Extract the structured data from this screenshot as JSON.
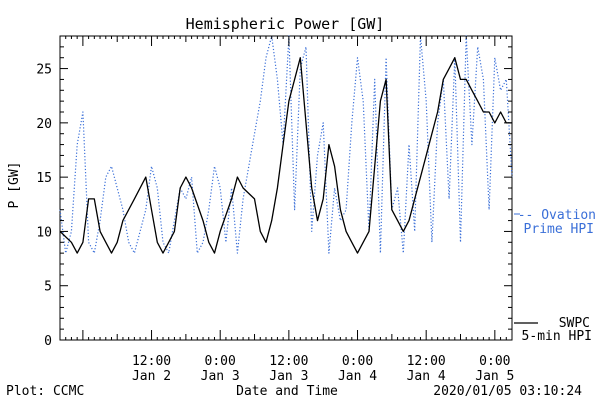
{
  "chart_data": {
    "type": "line",
    "title": "Hemispheric Power [GW]",
    "ylabel": "P [GW]",
    "xlabel": "Date and Time",
    "ylim": [
      0,
      28
    ],
    "yticks": [
      0,
      5,
      10,
      15,
      20,
      25
    ],
    "xlim": [
      "2020-01-01T20:00",
      "2020-01-05T03:00"
    ],
    "xticks": [
      {
        "at": "2020-01-02T12:00",
        "time": "12:00",
        "day": "Jan 2"
      },
      {
        "at": "2020-01-03T00:00",
        "time": "0:00",
        "day": "Jan 3"
      },
      {
        "at": "2020-01-03T12:00",
        "time": "12:00",
        "day": "Jan 3"
      },
      {
        "at": "2020-01-04T00:00",
        "time": "0:00",
        "day": "Jan 4"
      },
      {
        "at": "2020-01-04T12:00",
        "time": "12:00",
        "day": "Jan 4"
      },
      {
        "at": "2020-01-05T00:00",
        "time": "0:00",
        "day": "Jan 5"
      }
    ],
    "grid": false,
    "legend_placement": "right",
    "series": [
      {
        "name": "Ovation Prime HPI",
        "legend_lines": [
          "-- Ovation",
          "Prime HPI"
        ],
        "color": "#3a6fd8",
        "style": "dotted",
        "x": [
          "2020-01-01T20:00",
          "2020-01-01T21:00",
          "2020-01-01T22:00",
          "2020-01-01T23:00",
          "2020-01-02T00:00",
          "2020-01-02T01:00",
          "2020-01-02T02:00",
          "2020-01-02T03:00",
          "2020-01-02T04:00",
          "2020-01-02T05:00",
          "2020-01-02T06:00",
          "2020-01-02T07:00",
          "2020-01-02T08:00",
          "2020-01-02T09:00",
          "2020-01-02T10:00",
          "2020-01-02T11:00",
          "2020-01-02T12:00",
          "2020-01-02T13:00",
          "2020-01-02T14:00",
          "2020-01-02T15:00",
          "2020-01-02T16:00",
          "2020-01-02T17:00",
          "2020-01-02T18:00",
          "2020-01-02T19:00",
          "2020-01-02T20:00",
          "2020-01-02T21:00",
          "2020-01-02T22:00",
          "2020-01-02T23:00",
          "2020-01-03T00:00",
          "2020-01-03T01:00",
          "2020-01-03T02:00",
          "2020-01-03T03:00",
          "2020-01-03T04:00",
          "2020-01-03T05:00",
          "2020-01-03T06:00",
          "2020-01-03T07:00",
          "2020-01-03T08:00",
          "2020-01-03T09:00",
          "2020-01-03T10:00",
          "2020-01-03T11:00",
          "2020-01-03T12:00",
          "2020-01-03T13:00",
          "2020-01-03T14:00",
          "2020-01-03T15:00",
          "2020-01-03T16:00",
          "2020-01-03T17:00",
          "2020-01-03T18:00",
          "2020-01-03T19:00",
          "2020-01-03T20:00",
          "2020-01-03T21:00",
          "2020-01-03T22:00",
          "2020-01-03T23:00",
          "2020-01-04T00:00",
          "2020-01-04T01:00",
          "2020-01-04T02:00",
          "2020-01-04T03:00",
          "2020-01-04T04:00",
          "2020-01-04T05:00",
          "2020-01-04T06:00",
          "2020-01-04T07:00",
          "2020-01-04T08:00",
          "2020-01-04T09:00",
          "2020-01-04T10:00",
          "2020-01-04T11:00",
          "2020-01-04T12:00",
          "2020-01-04T13:00",
          "2020-01-04T14:00",
          "2020-01-04T15:00",
          "2020-01-04T16:00",
          "2020-01-04T17:00",
          "2020-01-04T18:00",
          "2020-01-04T19:00",
          "2020-01-04T20:00",
          "2020-01-04T21:00",
          "2020-01-04T22:00",
          "2020-01-04T23:00",
          "2020-01-05T00:00",
          "2020-01-05T01:00",
          "2020-01-05T02:00",
          "2020-01-05T03:00"
        ],
        "values": [
          12,
          8,
          10,
          18,
          21,
          9,
          8,
          11,
          15,
          16,
          14,
          12,
          9,
          8,
          10,
          12,
          16,
          14,
          9,
          8,
          11,
          14,
          13,
          15,
          8,
          9,
          12,
          16,
          14,
          9,
          14,
          8,
          13,
          16,
          19,
          22,
          26,
          28,
          24,
          18,
          28,
          12,
          25,
          27,
          10,
          17,
          20,
          8,
          14,
          11,
          12,
          20,
          26,
          22,
          10,
          24,
          8,
          26,
          12,
          14,
          8,
          18,
          10,
          28,
          22,
          9,
          20,
          24,
          13,
          26,
          9,
          28,
          18,
          27,
          24,
          12,
          26,
          23,
          24,
          15
        ]
      },
      {
        "name": "SWPC 5-min HPI",
        "legend_lines": [
          "SWPC",
          "5-min HPI"
        ],
        "color": "#000000",
        "style": "solid",
        "x": [
          "2020-01-01T20:00",
          "2020-01-01T22:00",
          "2020-01-01T23:00",
          "2020-01-02T00:00",
          "2020-01-02T01:00",
          "2020-01-02T02:00",
          "2020-01-02T03:00",
          "2020-01-02T04:00",
          "2020-01-02T05:00",
          "2020-01-02T06:00",
          "2020-01-02T07:00",
          "2020-01-02T09:00",
          "2020-01-02T11:00",
          "2020-01-02T12:00",
          "2020-01-02T13:00",
          "2020-01-02T14:00",
          "2020-01-02T15:00",
          "2020-01-02T16:00",
          "2020-01-02T17:00",
          "2020-01-02T18:00",
          "2020-01-02T19:00",
          "2020-01-02T21:00",
          "2020-01-02T22:00",
          "2020-01-02T23:00",
          "2020-01-03T00:00",
          "2020-01-03T02:00",
          "2020-01-03T03:00",
          "2020-01-03T04:00",
          "2020-01-03T06:00",
          "2020-01-03T07:00",
          "2020-01-03T08:00",
          "2020-01-03T09:00",
          "2020-01-03T10:00",
          "2020-01-03T11:00",
          "2020-01-03T12:00",
          "2020-01-03T13:00",
          "2020-01-03T14:00",
          "2020-01-03T15:00",
          "2020-01-03T16:00",
          "2020-01-03T17:00",
          "2020-01-03T18:00",
          "2020-01-03T19:00",
          "2020-01-03T20:00",
          "2020-01-03T21:00",
          "2020-01-03T22:00",
          "2020-01-03T23:00",
          "2020-01-04T00:00",
          "2020-01-04T01:00",
          "2020-01-04T02:00",
          "2020-01-04T03:00",
          "2020-01-04T04:00",
          "2020-01-04T05:00",
          "2020-01-04T06:00",
          "2020-01-04T07:00",
          "2020-01-04T08:00",
          "2020-01-04T09:00",
          "2020-01-04T10:00",
          "2020-01-04T11:00",
          "2020-01-04T12:00",
          "2020-01-04T13:00",
          "2020-01-04T14:00",
          "2020-01-04T15:00",
          "2020-01-04T16:00",
          "2020-01-04T17:00",
          "2020-01-04T18:00",
          "2020-01-04T19:00",
          "2020-01-04T20:00",
          "2020-01-04T21:00",
          "2020-01-04T22:00",
          "2020-01-04T23:00",
          "2020-01-05T00:00",
          "2020-01-05T01:00",
          "2020-01-05T02:00",
          "2020-01-05T03:00"
        ],
        "values": [
          10,
          9,
          8,
          9,
          13,
          13,
          10,
          9,
          8,
          9,
          11,
          13,
          15,
          12,
          9,
          8,
          9,
          10,
          14,
          15,
          14,
          11,
          9,
          8,
          10,
          13,
          15,
          14,
          13,
          10,
          9,
          11,
          14,
          18,
          22,
          24,
          26,
          20,
          14,
          11,
          13,
          18,
          16,
          12,
          10,
          9,
          8,
          9,
          10,
          16,
          22,
          24,
          12,
          11,
          10,
          11,
          13,
          15,
          17,
          19,
          21,
          24,
          25,
          26,
          24,
          24,
          23,
          22,
          21,
          21,
          20,
          21,
          20,
          20
        ]
      }
    ]
  },
  "footer": {
    "plot_credit": "Plot: CCMC",
    "timestamp": "2020/01/05 03:10:24"
  }
}
